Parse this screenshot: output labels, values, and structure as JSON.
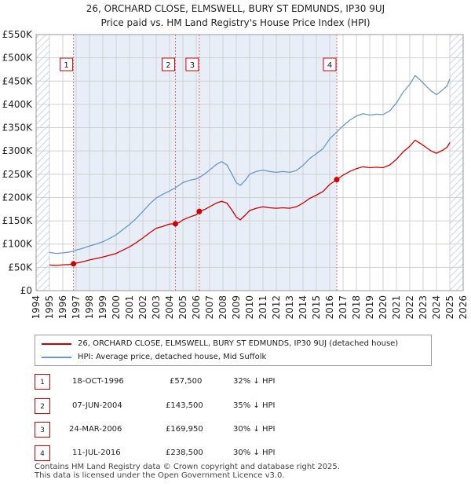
{
  "header": {
    "line1": "26, ORCHARD CLOSE, ELMSWELL, BURY ST EDMUNDS, IP30 9UJ",
    "line2": "Price paid vs. HM Land Registry's House Price Index (HPI)"
  },
  "colors": {
    "price": "#cc0000",
    "hpi": "#6b96c8",
    "shade": "#e8eef8",
    "hatch": "#c8d4e6",
    "marker_border": "#cc0000"
  },
  "chart_data": {
    "type": "line",
    "title": "Price paid vs. HM Land Registry's House Price Index (HPI)",
    "xlabel": "",
    "ylabel": "",
    "xlim": [
      1994,
      2026
    ],
    "ylim": [
      0,
      550000
    ],
    "x_ticks": [
      "1994",
      "1995",
      "1996",
      "1997",
      "1998",
      "1999",
      "2000",
      "2001",
      "2002",
      "2003",
      "2004",
      "2005",
      "2006",
      "2007",
      "2008",
      "2009",
      "2010",
      "2011",
      "2012",
      "2013",
      "2014",
      "2015",
      "2016",
      "2017",
      "2018",
      "2019",
      "2020",
      "2021",
      "2022",
      "2023",
      "2024",
      "2025",
      "2026"
    ],
    "y_ticks": [
      {
        "value": 0,
        "label": "£0"
      },
      {
        "value": 50000,
        "label": "£50K"
      },
      {
        "value": 100000,
        "label": "£100K"
      },
      {
        "value": 150000,
        "label": "£150K"
      },
      {
        "value": 200000,
        "label": "£200K"
      },
      {
        "value": 250000,
        "label": "£250K"
      },
      {
        "value": 300000,
        "label": "£300K"
      },
      {
        "value": 350000,
        "label": "£350K"
      },
      {
        "value": 400000,
        "label": "£400K"
      },
      {
        "value": 450000,
        "label": "£450K"
      },
      {
        "value": 500000,
        "label": "£500K"
      },
      {
        "value": 550000,
        "label": "£550K"
      }
    ],
    "series": [
      {
        "name": "26, ORCHARD CLOSE, ELMSWELL, BURY ST EDMUNDS, IP30 9UJ (detached house)",
        "color": "#cc0000",
        "points": [
          [
            1995.0,
            55000
          ],
          [
            1995.5,
            54000
          ],
          [
            1996.0,
            55500
          ],
          [
            1996.5,
            56000
          ],
          [
            1996.8,
            57500
          ],
          [
            1997.0,
            59000
          ],
          [
            1997.5,
            62000
          ],
          [
            1998.0,
            66000
          ],
          [
            1998.5,
            69000
          ],
          [
            1999.0,
            72000
          ],
          [
            1999.5,
            76000
          ],
          [
            2000.0,
            80000
          ],
          [
            2000.5,
            87000
          ],
          [
            2001.0,
            94000
          ],
          [
            2001.5,
            103000
          ],
          [
            2002.0,
            113000
          ],
          [
            2002.5,
            124000
          ],
          [
            2003.0,
            134000
          ],
          [
            2003.5,
            138000
          ],
          [
            2004.0,
            143000
          ],
          [
            2004.44,
            143500
          ],
          [
            2004.7,
            146000
          ],
          [
            2005.0,
            152000
          ],
          [
            2005.5,
            158000
          ],
          [
            2006.0,
            163000
          ],
          [
            2006.23,
            169950
          ],
          [
            2006.6,
            174000
          ],
          [
            2007.0,
            180000
          ],
          [
            2007.5,
            188000
          ],
          [
            2007.9,
            192000
          ],
          [
            2008.3,
            188000
          ],
          [
            2008.7,
            172000
          ],
          [
            2009.0,
            158000
          ],
          [
            2009.3,
            152000
          ],
          [
            2009.7,
            163000
          ],
          [
            2010.0,
            172000
          ],
          [
            2010.5,
            177000
          ],
          [
            2011.0,
            180000
          ],
          [
            2011.5,
            178000
          ],
          [
            2012.0,
            177000
          ],
          [
            2012.5,
            178000
          ],
          [
            2013.0,
            177000
          ],
          [
            2013.5,
            180000
          ],
          [
            2014.0,
            188000
          ],
          [
            2014.5,
            198000
          ],
          [
            2015.0,
            205000
          ],
          [
            2015.5,
            213000
          ],
          [
            2016.0,
            228000
          ],
          [
            2016.53,
            238500
          ],
          [
            2017.0,
            248000
          ],
          [
            2017.5,
            256000
          ],
          [
            2018.0,
            262000
          ],
          [
            2018.5,
            266000
          ],
          [
            2019.0,
            264000
          ],
          [
            2019.5,
            265000
          ],
          [
            2020.0,
            264000
          ],
          [
            2020.5,
            270000
          ],
          [
            2021.0,
            282000
          ],
          [
            2021.5,
            298000
          ],
          [
            2022.0,
            310000
          ],
          [
            2022.4,
            323000
          ],
          [
            2022.8,
            316000
          ],
          [
            2023.2,
            308000
          ],
          [
            2023.6,
            300000
          ],
          [
            2024.0,
            295000
          ],
          [
            2024.5,
            302000
          ],
          [
            2024.8,
            308000
          ],
          [
            2025.0,
            318000
          ]
        ]
      },
      {
        "name": "HPI: Average price, detached house, Mid Suffolk",
        "color": "#6b96c8",
        "points": [
          [
            1995.0,
            82000
          ],
          [
            1995.5,
            80000
          ],
          [
            1996.0,
            81000
          ],
          [
            1996.5,
            83000
          ],
          [
            1996.8,
            84800
          ],
          [
            1997.0,
            87000
          ],
          [
            1997.5,
            91000
          ],
          [
            1998.0,
            96000
          ],
          [
            1998.5,
            100000
          ],
          [
            1999.0,
            105000
          ],
          [
            1999.5,
            112000
          ],
          [
            2000.0,
            120000
          ],
          [
            2000.5,
            131000
          ],
          [
            2001.0,
            142000
          ],
          [
            2001.5,
            155000
          ],
          [
            2002.0,
            170000
          ],
          [
            2002.5,
            186000
          ],
          [
            2003.0,
            199000
          ],
          [
            2003.5,
            207000
          ],
          [
            2004.0,
            214000
          ],
          [
            2004.44,
            221000
          ],
          [
            2004.7,
            226000
          ],
          [
            2005.0,
            232000
          ],
          [
            2005.5,
            237000
          ],
          [
            2006.0,
            240000
          ],
          [
            2006.23,
            243000
          ],
          [
            2006.6,
            250000
          ],
          [
            2007.0,
            259000
          ],
          [
            2007.5,
            271000
          ],
          [
            2007.9,
            277000
          ],
          [
            2008.3,
            270000
          ],
          [
            2008.7,
            249000
          ],
          [
            2009.0,
            232000
          ],
          [
            2009.3,
            226000
          ],
          [
            2009.7,
            238000
          ],
          [
            2010.0,
            250000
          ],
          [
            2010.5,
            256000
          ],
          [
            2011.0,
            259000
          ],
          [
            2011.5,
            256000
          ],
          [
            2012.0,
            254000
          ],
          [
            2012.5,
            256000
          ],
          [
            2013.0,
            254000
          ],
          [
            2013.5,
            258000
          ],
          [
            2014.0,
            269000
          ],
          [
            2014.5,
            284000
          ],
          [
            2015.0,
            294000
          ],
          [
            2015.5,
            305000
          ],
          [
            2016.0,
            326000
          ],
          [
            2016.53,
            341000
          ],
          [
            2017.0,
            354000
          ],
          [
            2017.5,
            366000
          ],
          [
            2018.0,
            375000
          ],
          [
            2018.5,
            380000
          ],
          [
            2019.0,
            377000
          ],
          [
            2019.5,
            379000
          ],
          [
            2020.0,
            378000
          ],
          [
            2020.5,
            386000
          ],
          [
            2021.0,
            403000
          ],
          [
            2021.5,
            426000
          ],
          [
            2022.0,
            443000
          ],
          [
            2022.4,
            462000
          ],
          [
            2022.8,
            452000
          ],
          [
            2023.2,
            440000
          ],
          [
            2023.6,
            429000
          ],
          [
            2024.0,
            421000
          ],
          [
            2024.5,
            432000
          ],
          [
            2024.8,
            440000
          ],
          [
            2025.0,
            455000
          ]
        ]
      }
    ],
    "markers": [
      {
        "label": "1",
        "x": 1996.8,
        "y": 57500
      },
      {
        "label": "2",
        "x": 2004.44,
        "y": 143500
      },
      {
        "label": "3",
        "x": 2006.23,
        "y": 169950
      },
      {
        "label": "4",
        "x": 2016.53,
        "y": 238500
      }
    ],
    "shaded_range": [
      1996.8,
      2016.53
    ],
    "hatched_ranges": [
      [
        1994,
        1995
      ],
      [
        2025,
        2026
      ]
    ]
  },
  "legend": {
    "items": [
      {
        "label": "26, ORCHARD CLOSE, ELMSWELL, BURY ST EDMUNDS, IP30 9UJ (detached house)",
        "color": "#cc0000"
      },
      {
        "label": "HPI: Average price, detached house, Mid Suffolk",
        "color": "#6b96c8"
      }
    ]
  },
  "sales": [
    {
      "num": "1",
      "date": "18-OCT-1996",
      "price": "£57,500",
      "hpi": "32% ↓ HPI"
    },
    {
      "num": "2",
      "date": "07-JUN-2004",
      "price": "£143,500",
      "hpi": "35% ↓ HPI"
    },
    {
      "num": "3",
      "date": "24-MAR-2006",
      "price": "£169,950",
      "hpi": "30% ↓ HPI"
    },
    {
      "num": "4",
      "date": "11-JUL-2016",
      "price": "£238,500",
      "hpi": "30% ↓ HPI"
    }
  ],
  "footer": {
    "line1": "Contains HM Land Registry data © Crown copyright and database right 2025.",
    "line2": "This data is licensed under the Open Government Licence v3.0."
  }
}
